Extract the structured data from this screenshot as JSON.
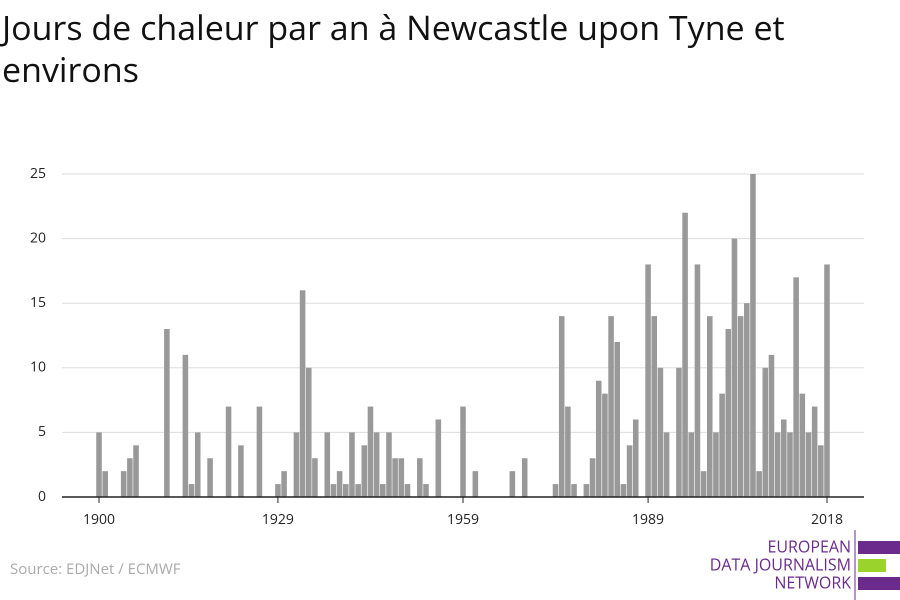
{
  "chart_data": {
    "type": "bar",
    "title": "Jours de chaleur par an à Newcastle upon Tyne et environs",
    "source": "Source: EDJNet / ECMWF",
    "logo": [
      "EUROPEAN",
      "DATA JOURNALISM",
      "NETWORK"
    ],
    "color": "#999999",
    "x": [
      1900,
      1901,
      1902,
      1903,
      1904,
      1905,
      1906,
      1907,
      1908,
      1909,
      1910,
      1911,
      1912,
      1913,
      1914,
      1915,
      1916,
      1917,
      1918,
      1919,
      1920,
      1921,
      1922,
      1923,
      1924,
      1925,
      1926,
      1927,
      1928,
      1929,
      1930,
      1931,
      1932,
      1933,
      1934,
      1935,
      1936,
      1937,
      1938,
      1939,
      1940,
      1941,
      1942,
      1943,
      1944,
      1945,
      1946,
      1947,
      1948,
      1949,
      1950,
      1951,
      1952,
      1953,
      1954,
      1955,
      1956,
      1957,
      1958,
      1959,
      1960,
      1961,
      1962,
      1963,
      1964,
      1965,
      1966,
      1967,
      1968,
      1969,
      1970,
      1971,
      1972,
      1973,
      1974,
      1975,
      1976,
      1977,
      1978,
      1979,
      1980,
      1981,
      1982,
      1983,
      1984,
      1985,
      1986,
      1987,
      1988,
      1989,
      1990,
      1991,
      1992,
      1993,
      1994,
      1995,
      1996,
      1997,
      1998,
      1999,
      2000,
      2001,
      2002,
      2003,
      2004,
      2005,
      2006,
      2007,
      2008,
      2009,
      2010,
      2011,
      2012,
      2013,
      2014,
      2015,
      2016,
      2017,
      2018
    ],
    "values": [
      5,
      2,
      0,
      0,
      2,
      3,
      4,
      0,
      0,
      0,
      0,
      13,
      0,
      0,
      11,
      1,
      5,
      0,
      3,
      0,
      0,
      7,
      0,
      4,
      0,
      0,
      7,
      0,
      0,
      1,
      2,
      0,
      5,
      16,
      10,
      3,
      0,
      5,
      1,
      2,
      1,
      5,
      1,
      4,
      7,
      5,
      1,
      5,
      3,
      3,
      1,
      0,
      3,
      1,
      0,
      6,
      0,
      0,
      0,
      7,
      0,
      2,
      0,
      0,
      0,
      0,
      0,
      2,
      0,
      3,
      0,
      0,
      0,
      0,
      1,
      14,
      7,
      1,
      0,
      1,
      3,
      9,
      8,
      14,
      12,
      1,
      4,
      6,
      0,
      18,
      14,
      10,
      5,
      0,
      10,
      22,
      5,
      18,
      2,
      14,
      5,
      8,
      13,
      20,
      14,
      15,
      25,
      2,
      10,
      11,
      5,
      6,
      5,
      17,
      8,
      5,
      7,
      4,
      18
    ],
    "xlim": [
      1894,
      2024
    ],
    "xticks": [
      1900,
      1929,
      1959,
      1989,
      2018
    ],
    "ylim": [
      0,
      25
    ],
    "yticks": [
      0,
      5,
      10,
      15,
      20,
      25
    ],
    "grid": true
  }
}
